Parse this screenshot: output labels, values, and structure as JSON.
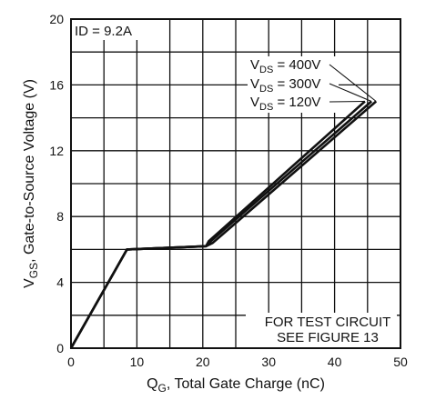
{
  "chart_data": {
    "type": "line",
    "xlim": [
      0,
      50
    ],
    "ylim": [
      0,
      20
    ],
    "x_ticks": [
      0,
      10,
      20,
      30,
      40,
      50
    ],
    "y_ticks": [
      0,
      4,
      8,
      12,
      16,
      20
    ],
    "grid": true,
    "xlabel": {
      "main": "Q",
      "sub": "G",
      "rest": ", Total Gate Charge (nC)"
    },
    "ylabel": {
      "main": "V",
      "sub": "GS",
      "rest": ", Gate-to-Source Voltage (V)"
    },
    "annotations": {
      "current": "ID = 9.2A",
      "test_circuit_line1": "FOR TEST CIRCUIT",
      "test_circuit_line2": "SEE FIGURE 13"
    },
    "series": [
      {
        "name": "VDS = 400V",
        "label": {
          "main": "V",
          "sub": "DS",
          "rest": " = 400V"
        },
        "x": [
          0,
          8.5,
          20.5,
          21.5,
          46.3
        ],
        "y": [
          0,
          6.0,
          6.2,
          6.4,
          15.0
        ]
      },
      {
        "name": "VDS = 300V",
        "label": {
          "main": "V",
          "sub": "DS",
          "rest": " = 300V"
        },
        "x": [
          0,
          8.5,
          20.5,
          21.2,
          45.6
        ],
        "y": [
          0,
          6.0,
          6.2,
          6.5,
          15.0
        ]
      },
      {
        "name": "VDS = 120V",
        "label": {
          "main": "V",
          "sub": "DS",
          "rest": " = 120V"
        },
        "x": [
          0,
          8.5,
          20.5,
          20.9,
          44.6
        ],
        "y": [
          0,
          6.0,
          6.2,
          6.5,
          15.0
        ]
      }
    ]
  }
}
